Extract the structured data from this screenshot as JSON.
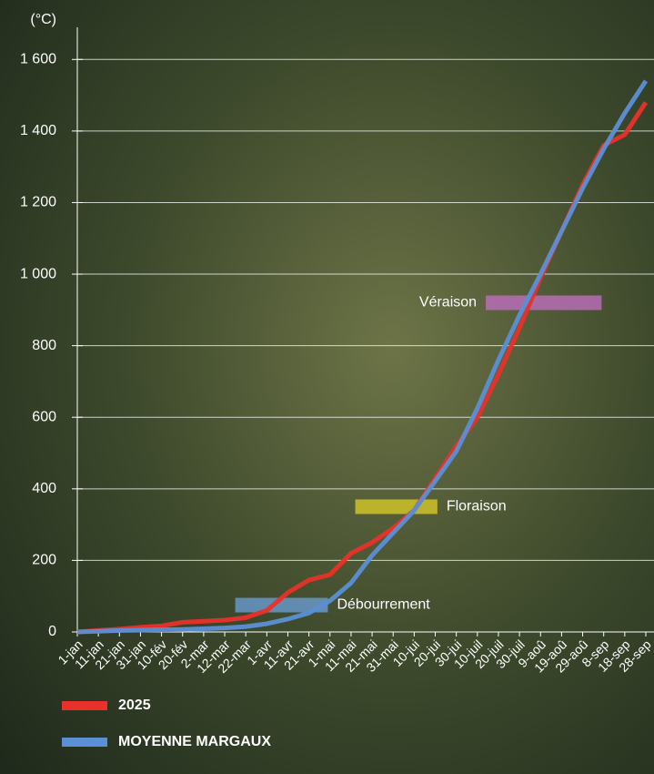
{
  "chart_data": {
    "type": "line",
    "y_unit": "(°C)",
    "categories": [
      "1-jan",
      "11-jan",
      "21-jan",
      "31-jan",
      "10-fév",
      "20-fév",
      "2-mar",
      "12-mar",
      "22-mar",
      "1-avr",
      "11-avr",
      "21-avr",
      "1-mai",
      "11-mai",
      "21-mai",
      "31-mai",
      "10-jui",
      "20-jui",
      "30-jui",
      "10-juil",
      "20-juil",
      "30-juil",
      "9-aoû",
      "19-aoû",
      "29-aoû",
      "8-sep",
      "18-sep",
      "28-sep"
    ],
    "series": [
      {
        "name": "2025",
        "color": "#e8312a",
        "values": [
          0,
          4,
          8,
          13,
          17,
          27,
          30,
          33,
          40,
          60,
          110,
          145,
          160,
          220,
          250,
          290,
          340,
          430,
          520,
          600,
          720,
          850,
          990,
          1120,
          1250,
          1360,
          1390,
          1480
        ]
      },
      {
        "name": "MOYENNE MARGAUX",
        "color": "#5b8fd6",
        "values": [
          0,
          2,
          4,
          5,
          6,
          7,
          9,
          11,
          15,
          23,
          36,
          53,
          87,
          137,
          214,
          277,
          340,
          422,
          505,
          625,
          760,
          885,
          1000,
          1120,
          1240,
          1350,
          1450,
          1540
        ]
      }
    ],
    "phases": [
      {
        "label": "Débourrement",
        "x": [
          7.5,
          11.9
        ],
        "value": 75,
        "color": "rgba(110,160,220,0.75)"
      },
      {
        "label": "Floraison",
        "x": [
          13.2,
          17.1
        ],
        "value": 350,
        "color": "rgba(215,200,40,0.8)"
      },
      {
        "label": "Véraison",
        "x": [
          19.4,
          24.9
        ],
        "value": 920,
        "color": "rgba(190,110,190,0.8)"
      }
    ],
    "ylim": [
      0,
      1700
    ],
    "yticks": [
      0,
      {
        "value": 200,
        "label": "200"
      },
      {
        "value": 400,
        "label": "400"
      },
      {
        "value": 600,
        "label": "600"
      },
      {
        "value": 800,
        "label": "800"
      },
      {
        "value": 1000,
        "label": "1 000"
      },
      {
        "value": 1200,
        "label": "1 200"
      },
      {
        "value": 1400,
        "label": "1 400"
      },
      {
        "value": 1600,
        "label": "1 600"
      }
    ],
    "grid": true
  }
}
